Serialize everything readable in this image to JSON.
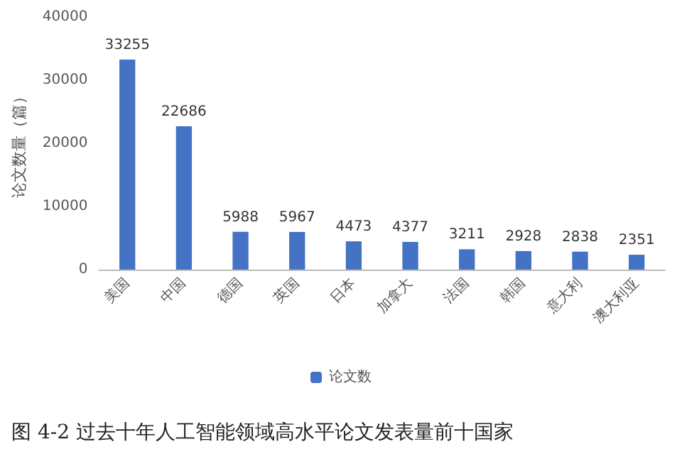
{
  "chart_data": {
    "type": "bar",
    "ylabel": "论文数量（篇）",
    "categories": [
      "美国",
      "中国",
      "德国",
      "英国",
      "日本",
      "加拿大",
      "法国",
      "韩国",
      "意大利",
      "澳大利亚"
    ],
    "series": [
      {
        "name": "论文数",
        "color": "#4472c4",
        "values": [
          33255,
          22686,
          5988,
          5967,
          4473,
          4377,
          3211,
          2928,
          2838,
          2351
        ]
      }
    ],
    "ylim": [
      0,
      40000
    ],
    "yticks": [
      0,
      10000,
      20000,
      30000,
      40000
    ],
    "data_labels": true,
    "grid": false,
    "legend": "bottom",
    "annotations": [
      "图 4-2 过去十年人工智能领域高水平论文发表量前十国家"
    ]
  }
}
